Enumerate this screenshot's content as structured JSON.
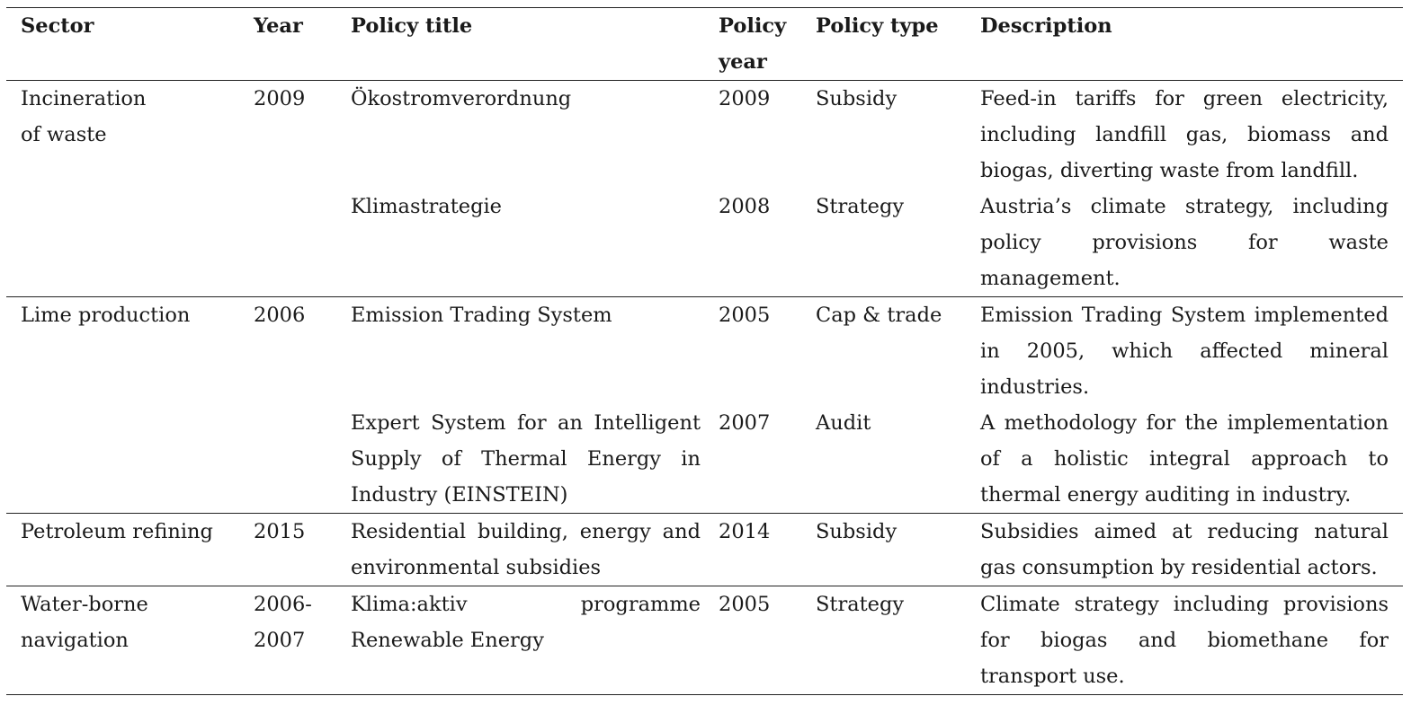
{
  "headers": {
    "sector": "Sector",
    "year": "Year",
    "policy_title": "Policy title",
    "policy_year_line1": "Policy",
    "policy_year_line2": "year",
    "policy_type": "Policy type",
    "description": "Description"
  },
  "rows": [
    {
      "sector_line1": "Incineration",
      "sector_line2": "of waste",
      "year": "2009",
      "policies": [
        {
          "title": "Ökostromverordnung",
          "policy_year": "2009",
          "policy_type": "Subsidy",
          "description": "Feed-in tariffs for green electricity, including landfill gas, biomass and biogas, diverting waste from landfill."
        },
        {
          "title": "Klimastrategie",
          "policy_year": "2008",
          "policy_type": "Strategy",
          "description": "Austria’s climate strategy, including policy provisions for waste management."
        }
      ]
    },
    {
      "sector": "Lime production",
      "year": "2006",
      "policies": [
        {
          "title": "Emission Trading System",
          "policy_year": "2005",
          "policy_type": "Cap & trade",
          "description": "Emission Trading System implemented in 2005, which affected mineral industries."
        },
        {
          "title": "Expert System for an Intelligent Supply of Thermal Energy in Industry (EINSTEIN)",
          "policy_year": "2007",
          "policy_type": "Audit",
          "description": "A methodology for the implementation of a holistic integral approach to thermal energy auditing in industry."
        }
      ]
    },
    {
      "sector": "Petroleum refining",
      "year": "2015",
      "policies": [
        {
          "title": "Residential building, energy and environmental subsidies",
          "policy_year": "2014",
          "policy_type": "Subsidy",
          "description": "Subsidies aimed at reducing natural gas consumption by residential actors."
        }
      ]
    },
    {
      "sector": "Water-borne navigation",
      "year_line1": "2006-",
      "year_line2": "2007",
      "policies": [
        {
          "title": "Klima:aktiv programme Renewable Energy",
          "policy_year": "2005",
          "policy_type": "Strategy",
          "description": "Climate strategy including provisions for biogas and biomethane for transport use."
        }
      ]
    }
  ]
}
